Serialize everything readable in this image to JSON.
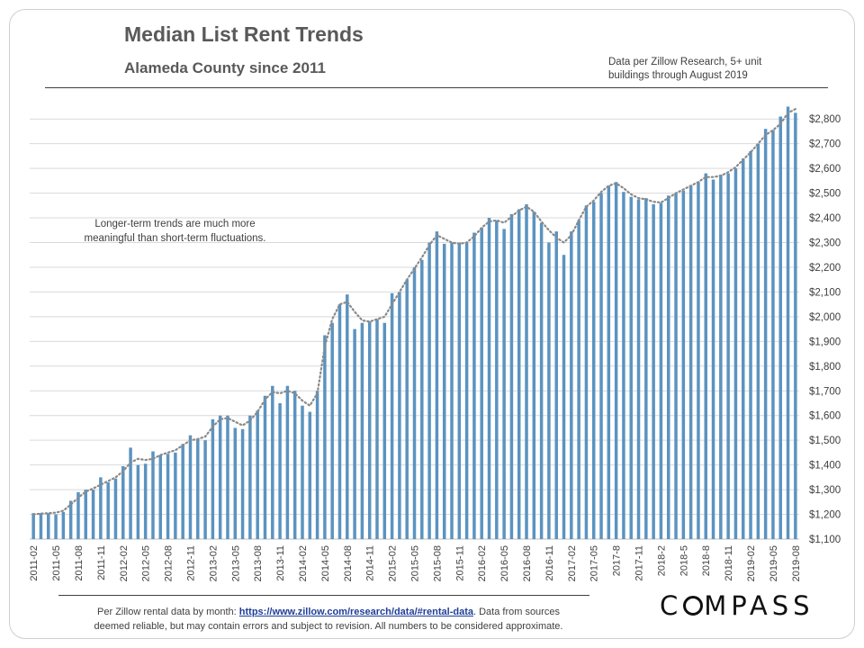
{
  "header": {
    "title": "Median List Rent Trends",
    "subtitle": "Alameda County since 2011",
    "source_note_line1": "Data per Zillow Research, 5+ unit",
    "source_note_line2": "buildings through August 2019"
  },
  "annotation": {
    "line1": "Longer-term trends are much more",
    "line2": "meaningful  than short-term fluctuations."
  },
  "footer": {
    "prefix": "Per Zillow  rental data by month: ",
    "link_text": "https://www.zillow.com/research/data/#rental-data",
    "suffix1": ".  Data from sources",
    "line2": "deemed reliable, but may contain errors and subject to revision.  All numbers to be considered approximate."
  },
  "logo": {
    "before": "C",
    "after": "MPASS"
  },
  "colors": {
    "bar": "#5b93c0",
    "trend": "#8a8a8a",
    "grid": "#d9d9d9",
    "text": "#404040"
  },
  "chart_data": {
    "type": "bar",
    "ylabel": "",
    "xlabel": "",
    "ylim": [
      1100,
      2870
    ],
    "y_ticks": [
      {
        "value": 1100,
        "label": "$1,100"
      },
      {
        "value": 1200,
        "label": "$1,200"
      },
      {
        "value": 1300,
        "label": "$1,300"
      },
      {
        "value": 1400,
        "label": "$1,400"
      },
      {
        "value": 1500,
        "label": "$1,500"
      },
      {
        "value": 1600,
        "label": "$1,600"
      },
      {
        "value": 1700,
        "label": "$1,700"
      },
      {
        "value": 1800,
        "label": "$1,800"
      },
      {
        "value": 1900,
        "label": "$1,900"
      },
      {
        "value": 2000,
        "label": "$2,000"
      },
      {
        "value": 2100,
        "label": "$2,100"
      },
      {
        "value": 2200,
        "label": "$2,200"
      },
      {
        "value": 2300,
        "label": "$2,300"
      },
      {
        "value": 2400,
        "label": "$2,400"
      },
      {
        "value": 2500,
        "label": "$2,500"
      },
      {
        "value": 2600,
        "label": "$2,600"
      },
      {
        "value": 2700,
        "label": "$2,700"
      },
      {
        "value": 2800,
        "label": "$2,800"
      }
    ],
    "grid": true,
    "categories": [
      "2011-02",
      "2011-03",
      "2011-04",
      "2011-05",
      "2011-06",
      "2011-07",
      "2011-08",
      "2011-09",
      "2011-10",
      "2011-11",
      "2011-12",
      "2012-01",
      "2012-02",
      "2012-03",
      "2012-04",
      "2012-05",
      "2012-06",
      "2012-07",
      "2012-08",
      "2012-09",
      "2012-10",
      "2012-11",
      "2012-12",
      "2013-01",
      "2013-02",
      "2013-03",
      "2013-04",
      "2013-05",
      "2013-06",
      "2013-07",
      "2013-08",
      "2013-09",
      "2013-10",
      "2013-11",
      "2013-12",
      "2014-01",
      "2014-02",
      "2014-03",
      "2014-04",
      "2014-05",
      "2014-06",
      "2014-07",
      "2014-08",
      "2014-09",
      "2014-10",
      "2014-11",
      "2014-12",
      "2015-01",
      "2015-02",
      "2015-03",
      "2015-04",
      "2015-05",
      "2015-06",
      "2015-07",
      "2015-08",
      "2015-09",
      "2015-10",
      "2015-11",
      "2015-12",
      "2016-01",
      "2016-02",
      "2016-03",
      "2016-04",
      "2016-05",
      "2016-06",
      "2016-07",
      "2016-08",
      "2016-09",
      "2016-10",
      "2016-11",
      "2016-12",
      "2017-01",
      "2017-02",
      "2017-03",
      "2017-04",
      "2017-05",
      "2017-06",
      "2017-7",
      "2017-8",
      "2017-9",
      "2017-10",
      "2017-11",
      "2017-12",
      "2018-1",
      "2018-2",
      "2018-3",
      "2018-4",
      "2018-5",
      "2018-6",
      "2018-7",
      "2018-8",
      "2018-9",
      "2018-10",
      "2018-11",
      "2018-12",
      "2019-01",
      "2019-02",
      "2019-03",
      "2019-04",
      "2019-05",
      "2019-06",
      "2019-07",
      "2019-08"
    ],
    "x_tick_labels": [
      "2011-02",
      "2011-05",
      "2011-08",
      "2011-11",
      "2012-02",
      "2012-05",
      "2012-08",
      "2012-11",
      "2013-02",
      "2013-05",
      "2013-08",
      "2013-11",
      "2014-02",
      "2014-05",
      "2014-08",
      "2014-11",
      "2015-02",
      "2015-05",
      "2015-08",
      "2015-11",
      "2016-02",
      "2016-05",
      "2016-08",
      "2016-11",
      "2017-02",
      "2017-05",
      "2017-8",
      "2017-11",
      "2018-2",
      "2018-5",
      "2018-8",
      "2018-11",
      "2019-02",
      "2019-05",
      "2019-08"
    ],
    "series": [
      {
        "values": [
          1205,
          1205,
          1205,
          1200,
          1210,
          1255,
          1290,
          1300,
          1300,
          1350,
          1330,
          1345,
          1395,
          1470,
          1400,
          1405,
          1455,
          1440,
          1445,
          1450,
          1485,
          1520,
          1505,
          1500,
          1585,
          1600,
          1600,
          1550,
          1545,
          1600,
          1620,
          1680,
          1720,
          1650,
          1720,
          1700,
          1640,
          1615,
          1700,
          1925,
          1975,
          2050,
          2090,
          1950,
          1975,
          1980,
          1990,
          1975,
          2095,
          2100,
          2150,
          2200,
          2230,
          2300,
          2345,
          2295,
          2300,
          2300,
          2300,
          2340,
          2360,
          2400,
          2390,
          2355,
          2415,
          2435,
          2455,
          2425,
          2380,
          2300,
          2345,
          2250,
          2345,
          2390,
          2450,
          2465,
          2500,
          2530,
          2545,
          2505,
          2485,
          2475,
          2480,
          2455,
          2460,
          2490,
          2500,
          2510,
          2530,
          2545,
          2580,
          2555,
          2575,
          2580,
          2600,
          2640,
          2670,
          2700,
          2760,
          2755,
          2810,
          2850,
          2825
        ]
      },
      {
        "values": [
          1200,
          1203,
          1205,
          1207,
          1215,
          1240,
          1268,
          1292,
          1305,
          1320,
          1335,
          1350,
          1375,
          1410,
          1425,
          1420,
          1425,
          1440,
          1450,
          1460,
          1480,
          1500,
          1505,
          1515,
          1555,
          1585,
          1590,
          1575,
          1560,
          1580,
          1615,
          1665,
          1695,
          1690,
          1700,
          1690,
          1660,
          1640,
          1690,
          1880,
          1990,
          2050,
          2060,
          2020,
          1985,
          1980,
          1990,
          2000,
          2050,
          2100,
          2150,
          2195,
          2240,
          2290,
          2330,
          2315,
          2300,
          2295,
          2300,
          2325,
          2360,
          2385,
          2390,
          2380,
          2405,
          2430,
          2445,
          2425,
          2385,
          2350,
          2320,
          2300,
          2330,
          2390,
          2445,
          2470,
          2505,
          2530,
          2540,
          2520,
          2495,
          2480,
          2475,
          2465,
          2462,
          2480,
          2500,
          2515,
          2530,
          2545,
          2565,
          2565,
          2570,
          2585,
          2605,
          2635,
          2665,
          2700,
          2735,
          2755,
          2780,
          2825,
          2840
        ]
      }
    ]
  }
}
